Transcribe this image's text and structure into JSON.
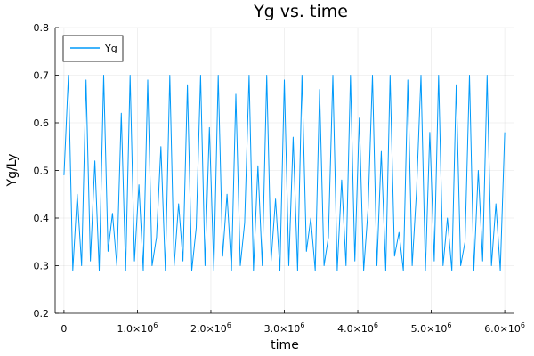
{
  "chart_data": {
    "type": "line",
    "title": "Yg vs. time",
    "xlabel": "time",
    "ylabel": "Yg/Ly",
    "xlim": [
      -120000,
      6120000
    ],
    "ylim": [
      0.2,
      0.8
    ],
    "grid": true,
    "legend": {
      "position": "top-left"
    },
    "x_ticks": [
      {
        "value": 0,
        "mantissa": "0",
        "exp": ""
      },
      {
        "value": 1000000,
        "mantissa": "1.0×10",
        "exp": "6"
      },
      {
        "value": 2000000,
        "mantissa": "2.0×10",
        "exp": "6"
      },
      {
        "value": 3000000,
        "mantissa": "3.0×10",
        "exp": "6"
      },
      {
        "value": 4000000,
        "mantissa": "4.0×10",
        "exp": "6"
      },
      {
        "value": 5000000,
        "mantissa": "5.0×10",
        "exp": "6"
      },
      {
        "value": 6000000,
        "mantissa": "6.0×10",
        "exp": "6"
      }
    ],
    "y_ticks": [
      "0.2",
      "0.3",
      "0.4",
      "0.5",
      "0.6",
      "0.7",
      "0.8"
    ],
    "series": [
      {
        "name": "Yg",
        "color": "#009AFA",
        "x": [
          0,
          60000,
          120000,
          180000,
          240000,
          300000,
          360000,
          420000,
          480000,
          540000,
          600000,
          660000,
          720000,
          780000,
          840000,
          900000,
          960000,
          1020000,
          1080000,
          1140000,
          1200000,
          1260000,
          1320000,
          1380000,
          1440000,
          1500000,
          1560000,
          1620000,
          1680000,
          1740000,
          1800000,
          1860000,
          1920000,
          1980000,
          2040000,
          2100000,
          2160000,
          2220000,
          2280000,
          2340000,
          2400000,
          2460000,
          2520000,
          2580000,
          2640000,
          2700000,
          2760000,
          2820000,
          2880000,
          2940000,
          3000000,
          3060000,
          3120000,
          3180000,
          3240000,
          3300000,
          3360000,
          3420000,
          3480000,
          3540000,
          3600000,
          3660000,
          3720000,
          3780000,
          3840000,
          3900000,
          3960000,
          4020000,
          4080000,
          4140000,
          4200000,
          4260000,
          4320000,
          4380000,
          4440000,
          4500000,
          4560000,
          4620000,
          4680000,
          4740000,
          4800000,
          4860000,
          4920000,
          4980000,
          5040000,
          5100000,
          5160000,
          5220000,
          5280000,
          5340000,
          5400000,
          5460000,
          5520000,
          5580000,
          5640000,
          5700000,
          5760000,
          5820000,
          5880000,
          5940000,
          6000000
        ],
        "y": [
          0.49,
          0.7,
          0.29,
          0.45,
          0.3,
          0.69,
          0.31,
          0.52,
          0.29,
          0.7,
          0.33,
          0.41,
          0.3,
          0.62,
          0.29,
          0.7,
          0.31,
          0.47,
          0.29,
          0.69,
          0.3,
          0.36,
          0.55,
          0.29,
          0.7,
          0.3,
          0.43,
          0.31,
          0.68,
          0.29,
          0.38,
          0.7,
          0.3,
          0.59,
          0.29,
          0.7,
          0.32,
          0.45,
          0.29,
          0.66,
          0.3,
          0.39,
          0.7,
          0.29,
          0.51,
          0.3,
          0.7,
          0.31,
          0.44,
          0.29,
          0.69,
          0.3,
          0.57,
          0.29,
          0.7,
          0.33,
          0.4,
          0.29,
          0.67,
          0.3,
          0.36,
          0.7,
          0.29,
          0.48,
          0.3,
          0.7,
          0.31,
          0.61,
          0.29,
          0.42,
          0.7,
          0.3,
          0.54,
          0.29,
          0.7,
          0.32,
          0.37,
          0.29,
          0.69,
          0.3,
          0.46,
          0.7,
          0.29,
          0.58,
          0.31,
          0.7,
          0.3,
          0.4,
          0.29,
          0.68,
          0.3,
          0.35,
          0.7,
          0.29,
          0.5,
          0.31,
          0.7,
          0.3,
          0.43,
          0.29,
          0.58
        ]
      }
    ]
  }
}
